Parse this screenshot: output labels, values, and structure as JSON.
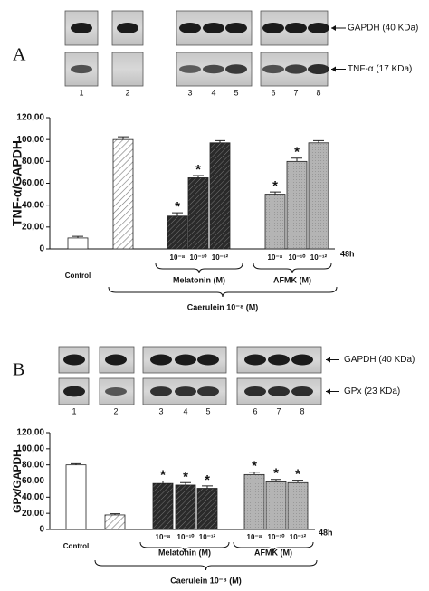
{
  "panels": [
    {
      "letter": "A",
      "blot_labels": [
        "GAPDH (40 KDa)",
        "TNF-α (17 KDa)"
      ],
      "lanes": [
        "1",
        "2",
        "3",
        "4",
        "5",
        "6",
        "7",
        "8"
      ]
    },
    {
      "letter": "B",
      "blot_labels": [
        "GAPDH (40 KDa)",
        "GPx (23 KDa)"
      ],
      "lanes": [
        "1",
        "2",
        "3",
        "4",
        "5",
        "6",
        "7",
        "8"
      ]
    }
  ],
  "chart_data": [
    {
      "type": "bar",
      "y_label": "TNF-α/GAPDH",
      "categories": [
        "Control",
        null,
        "10⁻⁸",
        "10⁻¹⁰",
        "10⁻¹²",
        "10⁻⁸",
        "10⁻¹⁰",
        "10⁻¹²"
      ],
      "values": [
        10,
        100,
        30,
        65,
        97,
        50,
        80,
        97
      ],
      "errors": [
        1.5,
        2.5,
        3,
        2,
        2,
        2,
        3,
        2
      ],
      "asterisks": [
        null,
        null,
        "*",
        "*",
        null,
        "*",
        "*",
        null
      ],
      "bar_styles": [
        "open",
        "hatched",
        "dark",
        "dark",
        "dark",
        "grey",
        "grey",
        "grey"
      ],
      "groups": [
        "Melatonin (M)",
        "AFMK (M)"
      ],
      "treatment": "Caerulein 10⁻⁸ (M)",
      "time": "48h",
      "ylim": [
        0,
        120
      ],
      "yticks": [
        0,
        {
          "value": 20,
          "label": "20,00"
        },
        {
          "value": 40,
          "label": "40,00"
        },
        {
          "value": 60,
          "label": "60,00"
        },
        {
          "value": 80,
          "label": "80,00"
        },
        {
          "value": 100,
          "label": "100,00"
        },
        {
          "value": 120,
          "label": "120,00"
        }
      ]
    },
    {
      "type": "bar",
      "y_label": "GPx/GAPDH",
      "categories": [
        "Control",
        null,
        "10⁻⁸",
        "10⁻¹⁰",
        "10⁻¹²",
        "10⁻⁸",
        "10⁻¹⁰",
        "10⁻¹²"
      ],
      "values": [
        80,
        18,
        57,
        55,
        51,
        68,
        59,
        58
      ],
      "errors": [
        1.5,
        1.5,
        3,
        3,
        3,
        3,
        3,
        3
      ],
      "asterisks": [
        null,
        null,
        "*",
        "*",
        "*",
        "*",
        "*",
        "*"
      ],
      "bar_styles": [
        "open",
        "hatched",
        "dark",
        "dark",
        "dark",
        "grey",
        "grey",
        "grey"
      ],
      "groups": [
        "Melatonin (M)",
        "AFMK (M)"
      ],
      "treatment": "Caerulein 10⁻⁸ (M)",
      "time": "48h",
      "ylim": [
        0,
        120
      ],
      "yticks": [
        0,
        {
          "value": 20,
          "label": "20,00"
        },
        {
          "value": 40,
          "label": "40,00"
        },
        {
          "value": 60,
          "label": "60,00"
        },
        {
          "value": 80,
          "label": "80,00"
        },
        {
          "value": 100,
          "label": "100,00"
        },
        {
          "value": 120,
          "label": "120,00"
        }
      ]
    }
  ]
}
